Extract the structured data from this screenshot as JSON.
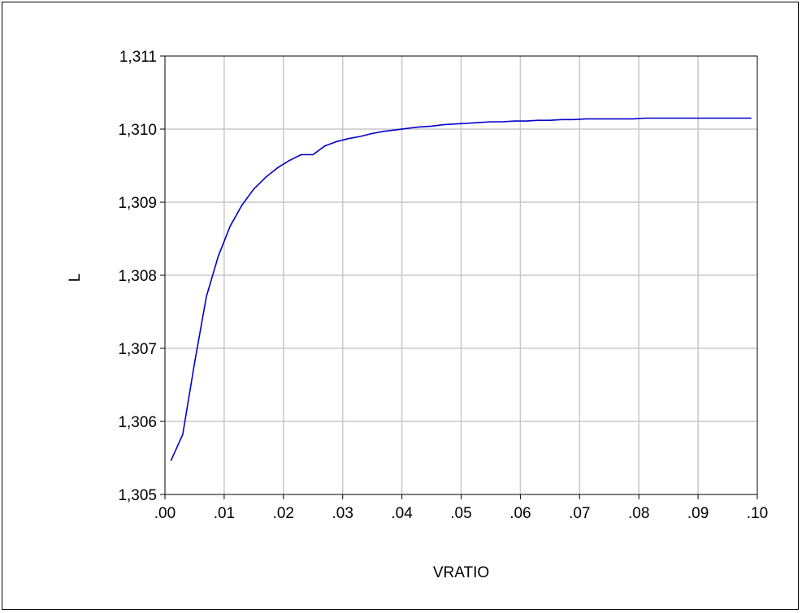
{
  "chart_data": {
    "type": "line",
    "title": "",
    "xlabel": "VRATIO",
    "ylabel": "L",
    "xlim": [
      0.0,
      0.1
    ],
    "ylim": [
      1.305,
      1.311
    ],
    "xticks": [
      0.0,
      0.01,
      0.02,
      0.03,
      0.04,
      0.05,
      0.06,
      0.07,
      0.08,
      0.09,
      0.1
    ],
    "xtick_labels": [
      ".00",
      ".01",
      ".02",
      ".03",
      ".04",
      ".05",
      ".06",
      ".07",
      ".08",
      ".09",
      ".10"
    ],
    "yticks": [
      1.305,
      1.306,
      1.307,
      1.308,
      1.309,
      1.31,
      1.311
    ],
    "ytick_labels": [
      "1,305",
      "1,306",
      "1,307",
      "1,308",
      "1,309",
      "1,310",
      "1,311"
    ],
    "grid": true,
    "legend": "none",
    "series": [
      {
        "color": "#0000cc",
        "x": [
          0.001,
          0.003,
          0.005,
          0.007,
          0.009,
          0.011,
          0.013,
          0.015,
          0.017,
          0.019,
          0.021,
          0.023,
          0.025,
          0.027,
          0.029,
          0.031,
          0.033,
          0.035,
          0.037,
          0.039,
          0.041,
          0.043,
          0.045,
          0.047,
          0.049,
          0.051,
          0.053,
          0.055,
          0.057,
          0.059,
          0.061,
          0.063,
          0.065,
          0.067,
          0.069,
          0.071,
          0.073,
          0.075,
          0.077,
          0.079,
          0.081,
          0.083,
          0.085,
          0.087,
          0.089,
          0.091,
          0.093,
          0.095,
          0.097,
          0.099
        ],
        "y": [
          1.30546,
          1.30582,
          1.3068,
          1.30771,
          1.30826,
          1.30867,
          1.30896,
          1.30918,
          1.30934,
          1.30947,
          1.30957,
          1.30965,
          1.30965,
          1.30977,
          1.30983,
          1.30987,
          1.3099,
          1.30994,
          1.30997,
          1.30999,
          1.31001,
          1.31003,
          1.31004,
          1.31006,
          1.31007,
          1.31008,
          1.31009,
          1.3101,
          1.3101,
          1.31011,
          1.31011,
          1.31012,
          1.31012,
          1.31013,
          1.31013,
          1.31014,
          1.31014,
          1.31014,
          1.31014,
          1.31014,
          1.31015,
          1.31015,
          1.31015,
          1.31015,
          1.31015,
          1.31015,
          1.31015,
          1.31015,
          1.31015,
          1.31015
        ]
      }
    ]
  }
}
